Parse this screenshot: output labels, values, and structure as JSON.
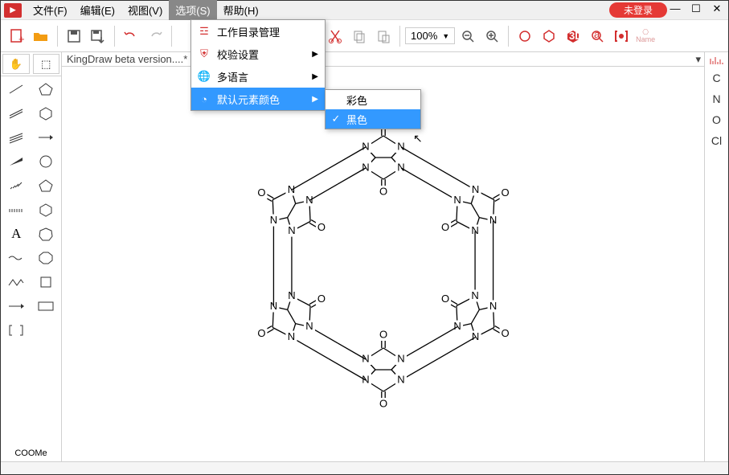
{
  "menubar": {
    "items": [
      "文件(F)",
      "编辑(E)",
      "视图(V)",
      "选项(S)",
      "帮助(H)"
    ],
    "active_index": 3,
    "login_label": "未登录"
  },
  "dropdown": {
    "items": [
      {
        "icon": "list",
        "label": "工作目录管理",
        "arrow": false
      },
      {
        "icon": "shield",
        "label": "校验设置",
        "arrow": true
      },
      {
        "icon": "globe",
        "label": "多语言",
        "arrow": true
      },
      {
        "icon": "palette",
        "label": "默认元素颜色",
        "arrow": true
      }
    ],
    "highlight_index": 3
  },
  "submenu": {
    "items": [
      {
        "checked": false,
        "label": "彩色"
      },
      {
        "checked": true,
        "label": "黑色"
      }
    ],
    "highlight_index": 1
  },
  "toolbar": {
    "zoom_value": "100%"
  },
  "canvas": {
    "tab_title": "KingDraw beta version....*"
  },
  "right_panel": {
    "elements": [
      "C",
      "N",
      "O",
      "Cl"
    ]
  },
  "left_tools": {
    "bottom_label": "COOMe"
  },
  "colors": {
    "accent": "#d32f2f",
    "highlight": "#3399ff",
    "orange": "#f39c12",
    "red": "#e53935"
  }
}
